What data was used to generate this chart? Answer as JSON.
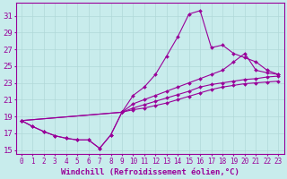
{
  "xlabel": "Windchill (Refroidissement éolien,°C)",
  "ylabel": "",
  "bg_color": "#c8ecec",
  "grid_color": "#b0d8d8",
  "line_color": "#990099",
  "xlim": [
    -0.5,
    23.5
  ],
  "ylim": [
    14.5,
    32.5
  ],
  "xticks": [
    0,
    1,
    2,
    3,
    4,
    5,
    6,
    7,
    8,
    9,
    10,
    11,
    12,
    13,
    14,
    15,
    16,
    17,
    18,
    19,
    20,
    21,
    22,
    23
  ],
  "yticks": [
    15,
    17,
    19,
    21,
    23,
    25,
    27,
    29,
    31
  ],
  "curve1_x": [
    0,
    1,
    2,
    3,
    4,
    5,
    6,
    7,
    8,
    9,
    10,
    11,
    12,
    13,
    14,
    15,
    16,
    17,
    18,
    19,
    20,
    21,
    22,
    23
  ],
  "curve1_y": [
    18.5,
    17.8,
    17.2,
    16.7,
    16.4,
    16.2,
    16.2,
    15.2,
    16.8,
    19.5,
    21.5,
    22.5,
    24.0,
    26.2,
    28.5,
    31.2,
    31.6,
    27.2,
    27.5,
    26.5,
    26.0,
    25.5,
    24.5,
    24.0
  ],
  "curve2_x": [
    0,
    1,
    2,
    3,
    4,
    5,
    6,
    7,
    8,
    9,
    10,
    11,
    12,
    13,
    14,
    15,
    16,
    17,
    18,
    19,
    20,
    21,
    22,
    23
  ],
  "curve2_y": [
    18.5,
    17.8,
    17.2,
    16.7,
    16.4,
    16.2,
    16.2,
    15.2,
    16.8,
    19.5,
    20.5,
    21.0,
    21.5,
    22.0,
    22.5,
    23.0,
    23.5,
    24.0,
    24.5,
    25.5,
    26.5,
    24.5,
    24.2,
    24.0
  ],
  "curve3_x": [
    0,
    9,
    10,
    11,
    12,
    13,
    14,
    15,
    16,
    17,
    18,
    19,
    20,
    21,
    22,
    23
  ],
  "curve3_y": [
    18.5,
    19.5,
    20.0,
    20.4,
    20.8,
    21.2,
    21.6,
    22.0,
    22.5,
    22.8,
    23.0,
    23.2,
    23.4,
    23.5,
    23.7,
    23.8
  ],
  "curve4_x": [
    0,
    9,
    10,
    11,
    12,
    13,
    14,
    15,
    16,
    17,
    18,
    19,
    20,
    21,
    22,
    23
  ],
  "curve4_y": [
    18.5,
    19.5,
    19.8,
    20.0,
    20.3,
    20.6,
    21.0,
    21.4,
    21.8,
    22.2,
    22.5,
    22.7,
    22.9,
    23.0,
    23.1,
    23.2
  ],
  "figsize": [
    3.2,
    2.0
  ],
  "dpi": 100,
  "fontsize_xlabel": 6.5,
  "fontsize_yticks": 6.5,
  "fontsize_xticks": 5.5
}
